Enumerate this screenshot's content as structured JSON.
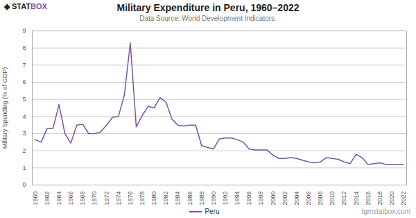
{
  "chart_data": {
    "type": "line",
    "title": "Military Expenditure in Peru, 1960–2022",
    "subtitle": "Data Source: World Development Indicators.",
    "ylabel": "Military Spending (% of GDP)",
    "annotations": [
      "◆",
      "STAT",
      "BOX",
      "tgmstatbox.com"
    ],
    "x": [
      1960,
      1961,
      1962,
      1963,
      1964,
      1965,
      1966,
      1967,
      1968,
      1969,
      1970,
      1971,
      1972,
      1973,
      1974,
      1975,
      1976,
      1977,
      1978,
      1979,
      1980,
      1981,
      1982,
      1983,
      1984,
      1985,
      1986,
      1987,
      1988,
      1989,
      1990,
      1991,
      1992,
      1993,
      1994,
      1995,
      1996,
      1997,
      1998,
      1999,
      2000,
      2001,
      2002,
      2003,
      2004,
      2005,
      2006,
      2007,
      2008,
      2009,
      2010,
      2011,
      2012,
      2013,
      2014,
      2015,
      2016,
      2017,
      2018,
      2019,
      2020,
      2021,
      2022
    ],
    "series": [
      {
        "name": "Peru",
        "color": "#7B52AB",
        "values": [
          2.65,
          2.5,
          3.3,
          3.3,
          4.7,
          3.0,
          2.45,
          3.5,
          3.55,
          3.0,
          3.0,
          3.1,
          3.5,
          3.95,
          4.0,
          5.25,
          8.3,
          3.4,
          4.05,
          4.6,
          4.5,
          5.1,
          4.85,
          3.85,
          3.5,
          3.45,
          3.5,
          3.5,
          2.3,
          2.2,
          2.1,
          2.7,
          2.75,
          2.75,
          2.65,
          2.5,
          2.1,
          2.05,
          2.05,
          2.05,
          1.75,
          1.55,
          1.55,
          1.6,
          1.55,
          1.45,
          1.35,
          1.3,
          1.35,
          1.6,
          1.55,
          1.5,
          1.35,
          1.25,
          1.8,
          1.6,
          1.2,
          1.25,
          1.3,
          1.2,
          1.2,
          1.2,
          1.2
        ]
      }
    ],
    "xlim": [
      1959.5,
      2022.5
    ],
    "xticks": [
      1960,
      1962,
      1964,
      1966,
      1968,
      1970,
      1972,
      1974,
      1976,
      1978,
      1980,
      1982,
      1984,
      1986,
      1988,
      1990,
      1992,
      1994,
      1996,
      1998,
      2000,
      2002,
      2004,
      2006,
      2008,
      2010,
      2012,
      2014,
      2016,
      2018,
      2020,
      2022
    ],
    "ylim": [
      0,
      9
    ],
    "yticks": [
      0,
      1,
      2,
      3,
      4,
      5,
      6,
      7,
      8,
      9
    ],
    "grid": "y",
    "legend": "bottom"
  }
}
